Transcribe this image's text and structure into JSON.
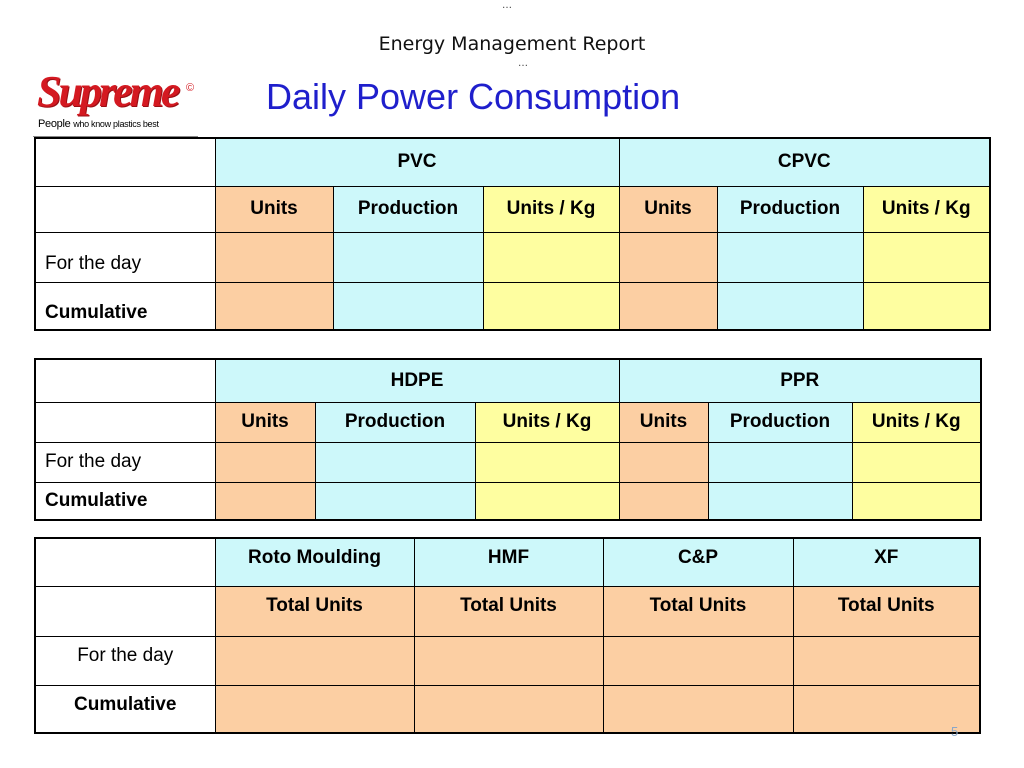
{
  "header": {
    "top_dots": "…",
    "report_title": "Energy Management Report",
    "mid_dots": "…",
    "main_title": "Daily Power Consumption"
  },
  "logo": {
    "wordmark": "Supreme",
    "copyright": "©",
    "tagline_start": "People",
    "tagline_rest": "who know plastics best"
  },
  "table1": {
    "groups": [
      "PVC",
      "CPVC"
    ],
    "subheaders": [
      "Units",
      "Production",
      "Units / Kg",
      "Units",
      "Production",
      "Units / Kg"
    ],
    "rows": [
      "For the day",
      "Cumulative"
    ]
  },
  "table2": {
    "groups": [
      "HDPE",
      "PPR"
    ],
    "subheaders": [
      "Units",
      "Production",
      "Units / Kg",
      "Units",
      "Production",
      "Units / Kg"
    ],
    "rows": [
      "For the day",
      "Cumulative"
    ]
  },
  "table3": {
    "groups": [
      "Roto Moulding",
      "HMF",
      "C&P",
      "XF"
    ],
    "subheaders": [
      "Total Units",
      "Total Units",
      "Total Units",
      "Total Units"
    ],
    "rows": [
      "For the day",
      "Cumulative"
    ]
  },
  "colors": {
    "title_blue": "#1f1fcc",
    "header_cyan": "#cdf8fa",
    "units_orange": "#fccfa3",
    "ratio_yellow": "#fefea0",
    "logo_red": "#d41921"
  },
  "footer": {
    "page_number": "5"
  }
}
